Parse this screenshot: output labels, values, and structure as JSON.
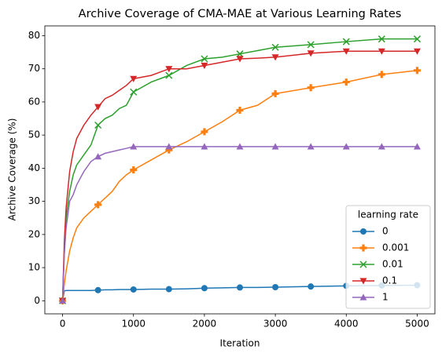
{
  "chart_data": {
    "type": "line",
    "title": "Archive Coverage of CMA-MAE at Various Learning Rates",
    "xlabel": "Iteration",
    "ylabel": "Archive Coverage (%)",
    "x": [
      0,
      25,
      50,
      100,
      150,
      200,
      300,
      400,
      500,
      600,
      700,
      800,
      900,
      1000,
      1250,
      1500,
      1750,
      2000,
      2250,
      2500,
      2750,
      3000,
      3500,
      4000,
      4500,
      5000
    ],
    "series": [
      {
        "name": "0",
        "color": "#1f77b4",
        "marker": "o",
        "values": [
          0,
          3,
          3.1,
          3.1,
          3.1,
          3.1,
          3.1,
          3.1,
          3.2,
          3.3,
          3.3,
          3.4,
          3.4,
          3.4,
          3.5,
          3.5,
          3.6,
          3.8,
          3.9,
          4,
          4,
          4.1,
          4.3,
          4.5,
          4.6,
          4.7
        ]
      },
      {
        "name": "0.001",
        "color": "#ff7f0e",
        "marker": "P",
        "values": [
          0,
          5,
          9,
          15,
          19,
          22,
          25,
          27,
          29,
          31,
          33,
          36,
          38,
          39.5,
          42.5,
          45.5,
          48,
          51,
          54,
          57.5,
          59,
          62.5,
          64.3,
          66,
          68.3,
          69.5
        ]
      },
      {
        "name": "0.01",
        "color": "#2ca02c",
        "marker": "x",
        "values": [
          0,
          15,
          25,
          33,
          38,
          41,
          44,
          47,
          53,
          55,
          56,
          58,
          59,
          63,
          66,
          68,
          71,
          73,
          73.5,
          74.5,
          75.5,
          76.5,
          77.3,
          78.2,
          79,
          79
        ]
      },
      {
        "name": "0.1",
        "color": "#d62728",
        "marker": "v",
        "values": [
          0,
          18,
          28,
          39,
          45,
          49,
          53,
          56,
          58.5,
          61,
          62,
          63.5,
          65,
          67,
          68,
          70,
          70,
          71,
          72,
          73,
          73.2,
          73.5,
          74.7,
          75.3,
          75.3,
          75.3
        ]
      },
      {
        "name": "1",
        "color": "#9467bd",
        "marker": "^",
        "values": [
          0,
          14,
          22,
          30,
          32,
          35,
          39,
          42,
          43.5,
          44.5,
          45,
          45.5,
          46,
          46.5,
          46.5,
          46.5,
          46.5,
          46.5,
          46.5,
          46.5,
          46.5,
          46.5,
          46.5,
          46.5,
          46.5,
          46.5
        ]
      }
    ],
    "marker_every": 500,
    "legend_title": "learning rate",
    "legend_loc": "lower right",
    "xlim": [
      -250,
      5250
    ],
    "xticks": [
      0,
      1000,
      2000,
      3000,
      4000,
      5000
    ],
    "ylim": [
      -3.95,
      82.95
    ],
    "yticks": [
      0,
      10,
      20,
      30,
      40,
      50,
      60,
      70,
      80
    ]
  }
}
